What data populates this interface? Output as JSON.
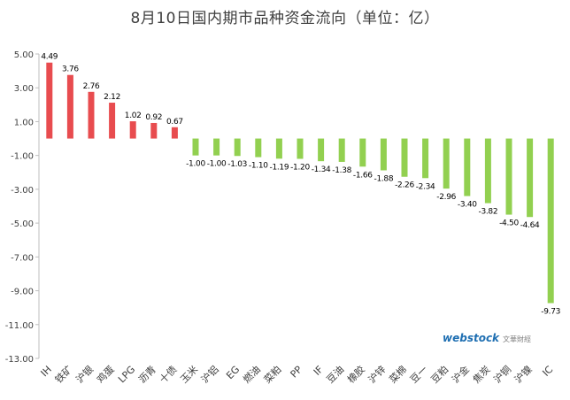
{
  "chart_data": {
    "type": "bar",
    "title": "8月10日国内期市品种资金流向（单位：亿）",
    "categories": [
      "IH",
      "铁矿",
      "沪银",
      "鸡蛋",
      "LPG",
      "沥青",
      "十债",
      "玉米",
      "沪铝",
      "EG",
      "燃油",
      "菜粕",
      "PP",
      "IF",
      "豆油",
      "橡胶",
      "沪锌",
      "菜棉",
      "豆一",
      "豆粕",
      "沪金",
      "焦炭",
      "沪铜",
      "沪镍",
      "IC"
    ],
    "values": [
      4.49,
      3.76,
      2.76,
      2.12,
      1.02,
      0.92,
      0.67,
      -1.0,
      -1.0,
      -1.03,
      -1.1,
      -1.19,
      -1.2,
      -1.34,
      -1.38,
      -1.66,
      -1.88,
      -2.26,
      -2.34,
      -2.96,
      -3.4,
      -3.82,
      -4.5,
      -4.64,
      -9.73
    ],
    "value_labels": [
      "4.49",
      "3.76",
      "2.76",
      "2.12",
      "1.02",
      "0.92",
      "0.67",
      "-1.00",
      "-1.00",
      "-1.03",
      "-1.10",
      "-1.19",
      "-1.20",
      "-1.34",
      "-1.38",
      "-1.66",
      "-1.88",
      "-2.26",
      "-2.34",
      "-2.96",
      "-3.40",
      "-3.82",
      "-4.50",
      "-4.64",
      "-9.73"
    ],
    "yticks": [
      "5.00",
      "3.00",
      "1.00",
      "-1.00",
      "-3.00",
      "-5.00",
      "-7.00",
      "-9.00",
      "-11.00",
      "-13.00"
    ],
    "ylim": [
      -13,
      5
    ],
    "colors": {
      "positive": "#e84c4f",
      "negative": "#92d050"
    },
    "grid": false,
    "legend": "none"
  },
  "watermark": {
    "brand": "webstock",
    "sub": "文華財經"
  }
}
